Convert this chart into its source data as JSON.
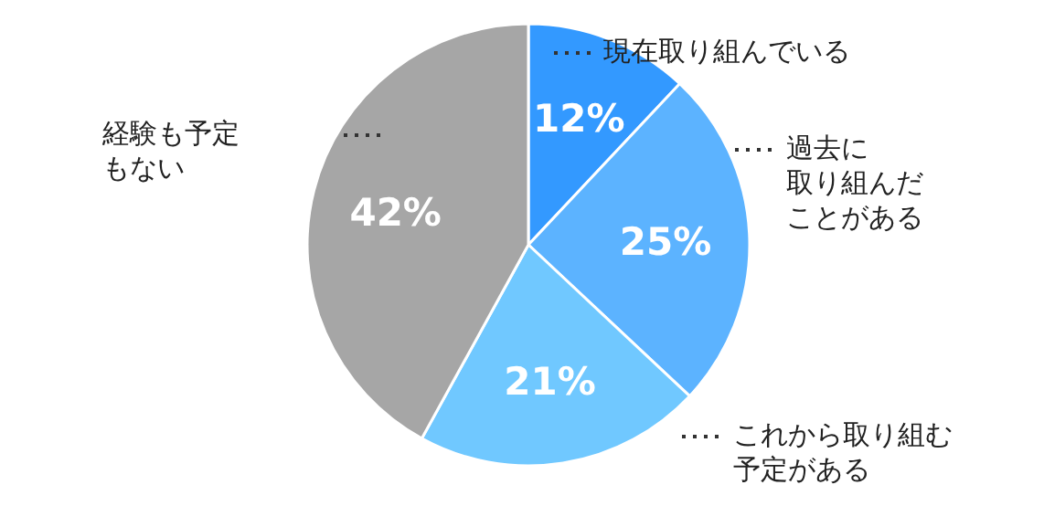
{
  "chart_data": {
    "type": "pie",
    "categories": [
      "現在取り組んでいる",
      "過去に取り組んだことがある",
      "これから取り組む予定がある",
      "経験も予定もない"
    ],
    "values": [
      12,
      25,
      21,
      42
    ],
    "colors": [
      "#3399ff",
      "#5cb3ff",
      "#70c8ff",
      "#a6a6a6"
    ],
    "value_labels": [
      "12%",
      "25%",
      "21%",
      "42%"
    ]
  }
}
